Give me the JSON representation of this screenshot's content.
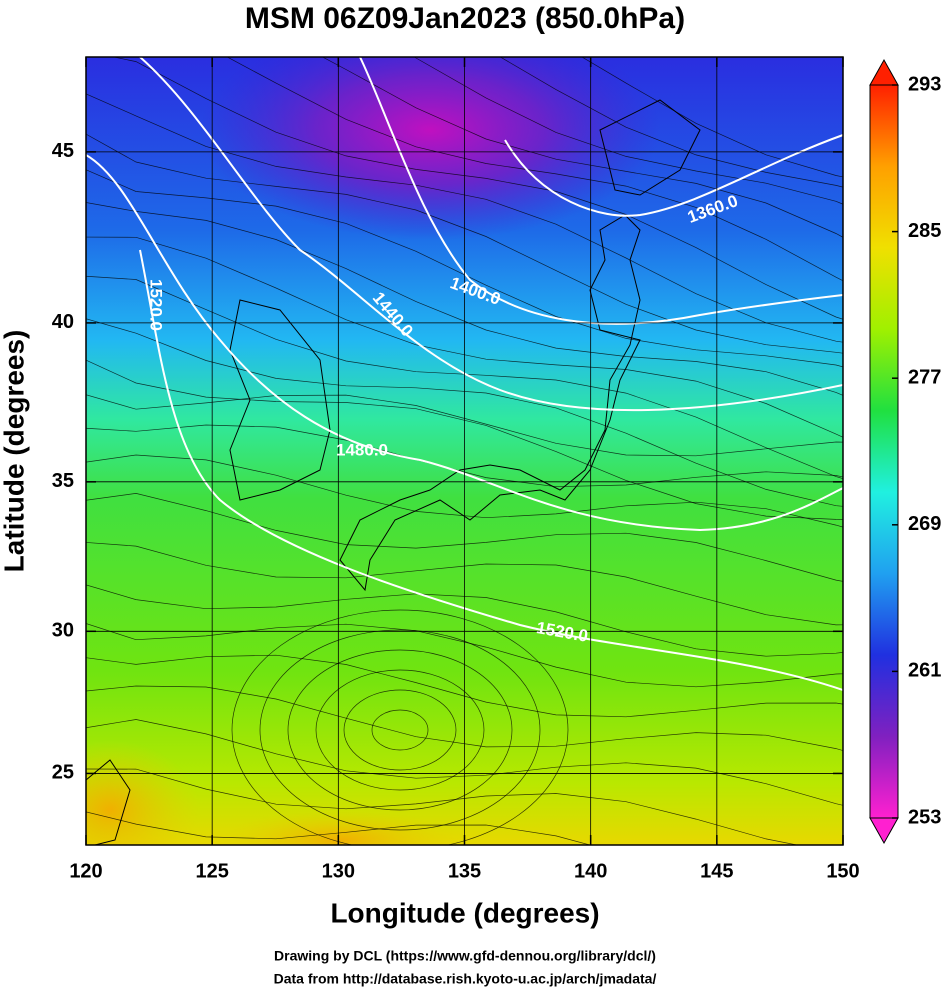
{
  "chart_data": {
    "type": "map",
    "projection": "mercator",
    "title": "MSM 06Z09Jan2023 (850.0hPa)",
    "xlabel": "Longitude (degrees)",
    "ylabel": "Latitude  (degrees)",
    "xlim": [
      120,
      150
    ],
    "ylim": [
      22.4,
      47.6
    ],
    "xticks": [
      120,
      125,
      130,
      135,
      140,
      145,
      150
    ],
    "yticks": [
      25,
      30,
      35,
      40,
      45
    ],
    "grid": true,
    "colorbar": {
      "lim": [
        253,
        293
      ],
      "ticks": [
        253,
        261,
        269,
        277,
        285,
        293
      ],
      "colors": [
        "#ff20d0",
        "#8020c0",
        "#2030e0",
        "#20a0f0",
        "#20f0e0",
        "#20e040",
        "#a0f000",
        "#f0e000",
        "#ffa000",
        "#ff2000"
      ]
    },
    "contour_labels": [
      {
        "value": 1360,
        "label": "1360.0"
      },
      {
        "value": 1400,
        "label": "1400.0"
      },
      {
        "value": 1440,
        "label": "1440.0"
      },
      {
        "value": 1480,
        "label": "1480.0"
      },
      {
        "value": 1520,
        "label": "1520.0"
      },
      {
        "value": 1520,
        "label": "1520.0"
      }
    ]
  },
  "footer": [
    "Drawing by DCL (https://www.gfd-dennou.org/library/dcl/)",
    "Data from http://database.rish.kyoto-u.ac.jp/arch/jmadata/"
  ]
}
